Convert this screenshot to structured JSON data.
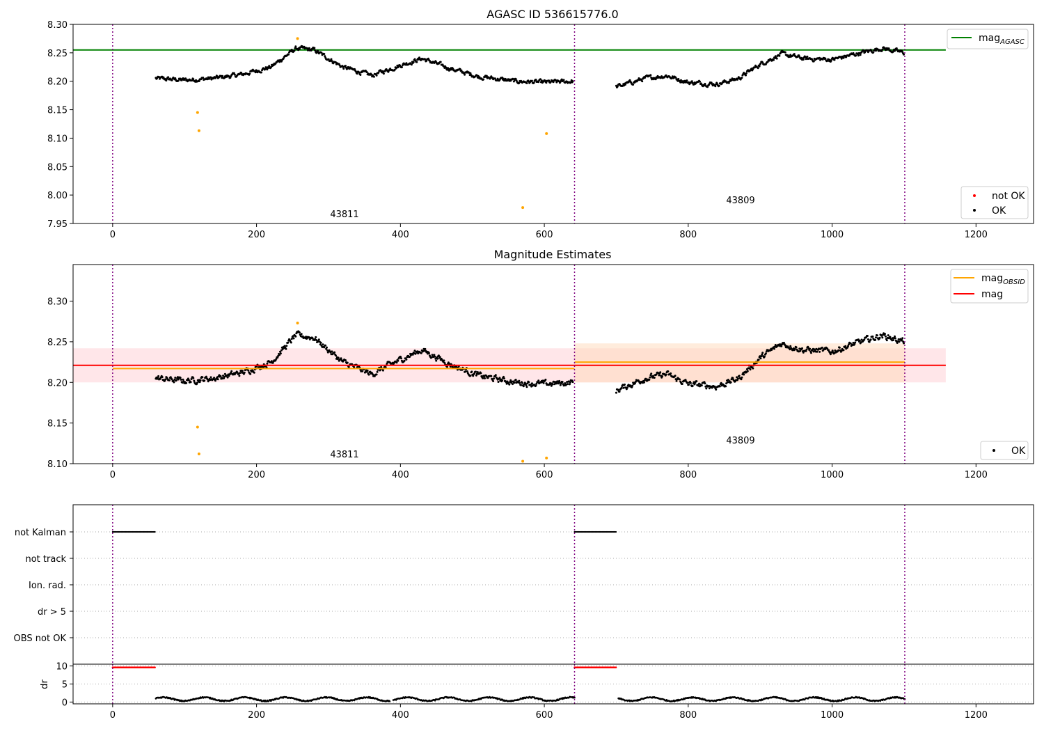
{
  "figure": {
    "colors": {
      "ok": "#000000",
      "not_ok": "#ff0000",
      "orange": "#ffa500",
      "agasc_line": "#008000",
      "mag_line": "#ff0000",
      "obs_line": "#ffa500",
      "vline": "#800080",
      "mag_band": "#ffb6c1",
      "obs_band": "#ffdab9"
    }
  },
  "chart_data": [
    {
      "type": "scatter",
      "title": "AGASC ID 536615776.0",
      "xlim": [
        -55,
        1280
      ],
      "ylim": [
        7.95,
        8.3
      ],
      "xticks": [
        0,
        200,
        400,
        600,
        800,
        1000,
        1200
      ],
      "yticks": [
        7.95,
        8.0,
        8.05,
        8.1,
        8.15,
        8.2,
        8.25,
        8.3
      ],
      "vlines": [
        0,
        642,
        1101
      ],
      "hlines": [
        {
          "name": "mag_{AGASC}",
          "y": 8.255,
          "x": [
            -55,
            1158
          ],
          "color": "#008000"
        }
      ],
      "annotations": [
        {
          "text": "43811",
          "x": 321,
          "y": 7.963
        },
        {
          "text": "43809",
          "x": 870,
          "y": 7.987
        }
      ],
      "series": [
        {
          "name": "not OK",
          "color": "#ff0000",
          "points": []
        },
        {
          "name": "OK",
          "color": "#000000",
          "segments": [
            {
              "x": [
                60,
                100,
                140,
                180,
                220,
                255,
                280,
                320,
                360,
                400,
                430,
                470,
                510,
                560,
                600,
                640
              ],
              "y": [
                8.205,
                8.202,
                8.205,
                8.212,
                8.225,
                8.258,
                8.255,
                8.225,
                8.21,
                8.228,
                8.24,
                8.222,
                8.208,
                8.2,
                8.198,
                8.2
              ]
            },
            {
              "x": [
                700,
                740,
                770,
                800,
                840,
                870,
                900,
                930,
                960,
                1000,
                1040,
                1070,
                1100
              ],
              "y": [
                8.19,
                8.205,
                8.21,
                8.198,
                8.195,
                8.205,
                8.23,
                8.248,
                8.24,
                8.238,
                8.25,
                8.258,
                8.25
              ]
            }
          ]
        },
        {
          "name": "orange",
          "color": "#ffa500",
          "points": [
            [
              118,
              8.145
            ],
            [
              120,
              8.113
            ],
            [
              257,
              8.275
            ],
            [
              570,
              7.978
            ],
            [
              603,
              8.108
            ]
          ]
        }
      ],
      "legend_lines": [
        {
          "label": "mag",
          "sub": "AGASC",
          "color": "#008000"
        }
      ],
      "legend_markers": [
        {
          "label": "not OK",
          "color": "#ff0000"
        },
        {
          "label": "OK",
          "color": "#000000"
        }
      ]
    },
    {
      "type": "scatter",
      "title": "Magnitude Estimates",
      "xlim": [
        -55,
        1280
      ],
      "ylim": [
        8.1,
        8.345
      ],
      "xticks": [
        0,
        200,
        400,
        600,
        800,
        1000,
        1200
      ],
      "yticks": [
        8.1,
        8.15,
        8.2,
        8.25,
        8.3
      ],
      "vlines": [
        0,
        642,
        1101
      ],
      "bands": [
        {
          "x": [
            -55,
            1158
          ],
          "y": [
            8.2,
            8.242
          ],
          "color": "#ffb6c1",
          "opacity": 0.35
        },
        {
          "x": [
            642,
            1101
          ],
          "y": [
            8.2,
            8.248
          ],
          "color": "#ffdab9",
          "opacity": 0.5
        }
      ],
      "hlines": [
        {
          "name": "mag_{OBSID}",
          "y": 8.217,
          "x": [
            0,
            642
          ],
          "color": "#ffa500"
        },
        {
          "name": "mag_{OBSID}",
          "y": 8.225,
          "x": [
            642,
            1101
          ],
          "color": "#ffa500"
        },
        {
          "name": "mag",
          "y": 8.221,
          "x": [
            -55,
            1158
          ],
          "color": "#ff0000"
        }
      ],
      "annotations": [
        {
          "text": "43811",
          "x": 321,
          "y": 8.111
        },
        {
          "text": "43809",
          "x": 870,
          "y": 8.128
        }
      ],
      "series": [
        {
          "name": "OK",
          "color": "#000000",
          "segments": [
            {
              "x": [
                60,
                100,
                140,
                180,
                220,
                255,
                280,
                320,
                360,
                400,
                430,
                470,
                510,
                560,
                600,
                640
              ],
              "y": [
                8.205,
                8.202,
                8.205,
                8.212,
                8.225,
                8.258,
                8.255,
                8.225,
                8.21,
                8.228,
                8.24,
                8.222,
                8.208,
                8.2,
                8.198,
                8.2
              ]
            },
            {
              "x": [
                700,
                740,
                770,
                800,
                840,
                870,
                900,
                930,
                960,
                1000,
                1040,
                1070,
                1100
              ],
              "y": [
                8.19,
                8.205,
                8.21,
                8.198,
                8.195,
                8.205,
                8.23,
                8.248,
                8.24,
                8.238,
                8.25,
                8.258,
                8.25
              ]
            }
          ]
        },
        {
          "name": "orange",
          "color": "#ffa500",
          "points": [
            [
              118,
              8.145
            ],
            [
              120,
              8.112
            ],
            [
              257,
              8.273
            ],
            [
              570,
              8.103
            ],
            [
              603,
              8.107
            ]
          ]
        }
      ],
      "legend_lines": [
        {
          "label": "mag",
          "sub": "OBSID",
          "color": "#ffa500"
        },
        {
          "label": "mag",
          "sub": "",
          "color": "#ff0000"
        }
      ],
      "legend_markers": [
        {
          "label": "OK",
          "color": "#000000"
        }
      ]
    },
    {
      "type": "scatter",
      "title": "",
      "xlim": [
        -55,
        1280
      ],
      "categories": [
        "not Kalman",
        "not track",
        "Ion. rad.",
        "dr > 5",
        "OBS not OK"
      ],
      "vlines": [
        0,
        642,
        1101
      ],
      "flags": [
        {
          "category": "not Kalman",
          "ranges": [
            [
              0,
              60
            ],
            [
              642,
              700
            ]
          ]
        }
      ]
    },
    {
      "type": "scatter",
      "title": "",
      "ylabel": "dr",
      "xlim": [
        -55,
        1280
      ],
      "ylim": [
        -0.5,
        10.5
      ],
      "xticks": [
        0,
        200,
        400,
        600,
        800,
        1000,
        1200
      ],
      "yticks": [
        0,
        5,
        10
      ],
      "vlines": [
        0,
        642,
        1101
      ],
      "series": [
        {
          "name": "dr > 5",
          "color": "#ff0000",
          "ranges": [
            [
              0,
              60
            ],
            [
              642,
              700
            ]
          ],
          "value": 9.6
        },
        {
          "name": "dr",
          "color": "#000000",
          "ranges": [
            [
              60,
              385
            ],
            [
              390,
              642
            ],
            [
              703,
              1101
            ]
          ],
          "level": 0.8
        }
      ]
    }
  ]
}
